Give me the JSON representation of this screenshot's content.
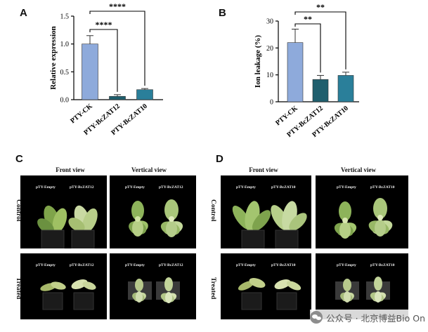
{
  "panels": {
    "a": "A",
    "b": "B",
    "c": "C",
    "d": "D"
  },
  "chart_data": [
    {
      "id": "A",
      "type": "bar",
      "categories": [
        "PTY-CK",
        "PTY-BcZAT12",
        "PTY-BcZAT10"
      ],
      "values": [
        1.0,
        0.06,
        0.18
      ],
      "errors": [
        0.15,
        0.03,
        0.02
      ],
      "ylabel": "Relative expression",
      "ylim": [
        0,
        1.5
      ],
      "yticks": [
        "0.0",
        "0.5",
        "1.0",
        "1.5"
      ],
      "colors": [
        "#8eaadb",
        "#1f5f6e",
        "#2a7f9a"
      ],
      "significance": [
        {
          "from": 0,
          "to": 1,
          "label": "****"
        },
        {
          "from": 0,
          "to": 2,
          "label": "****"
        }
      ],
      "grid": false
    },
    {
      "id": "B",
      "type": "bar",
      "categories": [
        "PTY-CK",
        "PTY-BcZAT12",
        "PTY-BcZAT10"
      ],
      "values": [
        22.0,
        8.3,
        9.8
      ],
      "errors": [
        5.0,
        1.5,
        1.2
      ],
      "ylabel": "Ion leakage (%)",
      "ylim": [
        0,
        30
      ],
      "yticks": [
        "0",
        "10",
        "20",
        "30"
      ],
      "colors": [
        "#8eaadb",
        "#1f5f6e",
        "#2a7f9a"
      ],
      "significance": [
        {
          "from": 0,
          "to": 1,
          "label": "**"
        },
        {
          "from": 0,
          "to": 2,
          "label": "**"
        }
      ],
      "grid": false
    }
  ],
  "photo_panels": {
    "c": {
      "front_view": "Front view",
      "vertical_view": "Vertical view",
      "row_control": "Control",
      "row_treated": "Treated",
      "label_empty": "pTY-Empty",
      "label_line": "pTY-BcZAT12"
    },
    "d": {
      "front_view": "Front view",
      "vertical_view": "Vertical view",
      "row_control": "Control",
      "row_treated": "Treated",
      "label_empty": "pTY-Empty",
      "label_line": "pTY-BcZAT10"
    }
  },
  "watermark": {
    "text": "公众号 · 北京博益Bio On"
  }
}
